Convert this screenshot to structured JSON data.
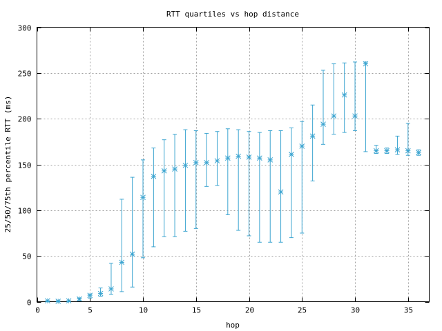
{
  "chart_data": {
    "type": "scatter",
    "title": "RTT quartiles vs hop distance",
    "xlabel": "hop",
    "ylabel": "25/50/75th percentile RTT (ms)",
    "xlim": [
      0,
      37
    ],
    "ylim": [
      0,
      300
    ],
    "x_ticks": [
      0,
      5,
      10,
      15,
      20,
      25,
      30,
      35
    ],
    "x_tick_labels": [
      "0",
      "5",
      "10",
      "15",
      "20",
      "25",
      "30",
      "35"
    ],
    "y_ticks": [
      0,
      50,
      100,
      150,
      200,
      250,
      300
    ],
    "y_tick_labels": [
      "0",
      "50",
      "100",
      "150",
      "200",
      "250",
      "300"
    ],
    "grid": true,
    "marker": "asterisk",
    "color": "#3ba4d0",
    "x": [
      1,
      2,
      3,
      4,
      5,
      6,
      7,
      8,
      9,
      10,
      11,
      12,
      13,
      14,
      15,
      16,
      17,
      18,
      19,
      20,
      21,
      22,
      23,
      24,
      25,
      26,
      27,
      28,
      29,
      30,
      31,
      32,
      33,
      34,
      35,
      36
    ],
    "p25": [
      0,
      0,
      0,
      1,
      4,
      6,
      8,
      11,
      16,
      48,
      60,
      71,
      71,
      77,
      80,
      126,
      127,
      95,
      78,
      72,
      65,
      65,
      65,
      70,
      75,
      132,
      172,
      183,
      185,
      187,
      164,
      162,
      162,
      161,
      160,
      160
    ],
    "median": [
      1,
      0.5,
      1,
      3,
      7,
      9,
      14,
      43,
      52,
      114,
      137,
      143,
      145,
      149,
      152,
      152,
      154,
      157,
      159,
      158,
      157,
      155,
      120,
      161,
      170,
      181,
      194,
      203,
      226,
      203,
      260,
      165,
      165,
      166,
      165,
      163
    ],
    "p75": [
      1,
      1,
      1,
      4,
      8,
      15,
      42,
      112,
      136,
      155,
      168,
      177,
      183,
      188,
      187,
      184,
      186,
      189,
      188,
      186,
      185,
      187,
      187,
      190,
      197,
      215,
      253,
      260,
      261,
      262,
      262,
      171,
      168,
      181,
      195,
      166
    ]
  }
}
